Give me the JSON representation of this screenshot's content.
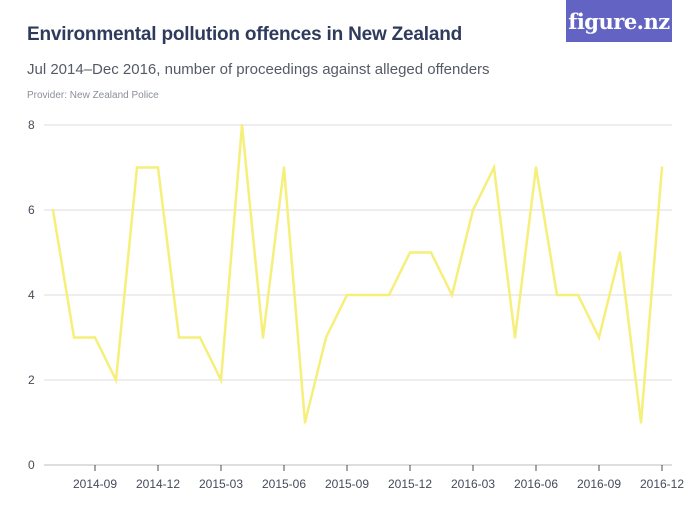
{
  "header": {
    "title": "Environmental pollution offences in New Zealand",
    "subtitle": "Jul 2014–Dec 2016, number of proceedings against alleged offenders",
    "provider": "Provider: New Zealand Police",
    "logo_text": "figure.nz"
  },
  "colors": {
    "line": "#f6ef7a",
    "grid": "#dcdcdc",
    "logo_bg": "#6363c4"
  },
  "chart_data": {
    "type": "line",
    "title": "Environmental pollution offences in New Zealand",
    "subtitle": "Jul 2014–Dec 2016, number of proceedings against alleged offenders",
    "xlabel": "",
    "ylabel": "",
    "x": [
      "2014-07",
      "2014-08",
      "2014-09",
      "2014-10",
      "2014-11",
      "2014-12",
      "2015-01",
      "2015-02",
      "2015-03",
      "2015-04",
      "2015-05",
      "2015-06",
      "2015-07",
      "2015-08",
      "2015-09",
      "2015-10",
      "2015-11",
      "2015-12",
      "2016-01",
      "2016-02",
      "2016-03",
      "2016-04",
      "2016-05",
      "2016-06",
      "2016-07",
      "2016-08",
      "2016-09",
      "2016-10",
      "2016-11",
      "2016-12"
    ],
    "values": [
      6,
      3,
      3,
      2,
      7,
      7,
      3,
      3,
      2,
      8,
      3,
      7,
      1,
      3,
      4,
      4,
      4,
      5,
      5,
      4,
      6,
      7,
      3,
      7,
      4,
      4,
      3,
      5,
      1,
      7
    ],
    "ylim": [
      0,
      8
    ],
    "yticks": [
      "0",
      "2",
      "4",
      "6",
      "8"
    ],
    "xtick_labels": [
      "2014-09",
      "2014-12",
      "2015-03",
      "2015-06",
      "2015-09",
      "2015-12",
      "2016-03",
      "2016-06",
      "2016-09",
      "2016-12"
    ],
    "grid": true,
    "legend": "none"
  }
}
